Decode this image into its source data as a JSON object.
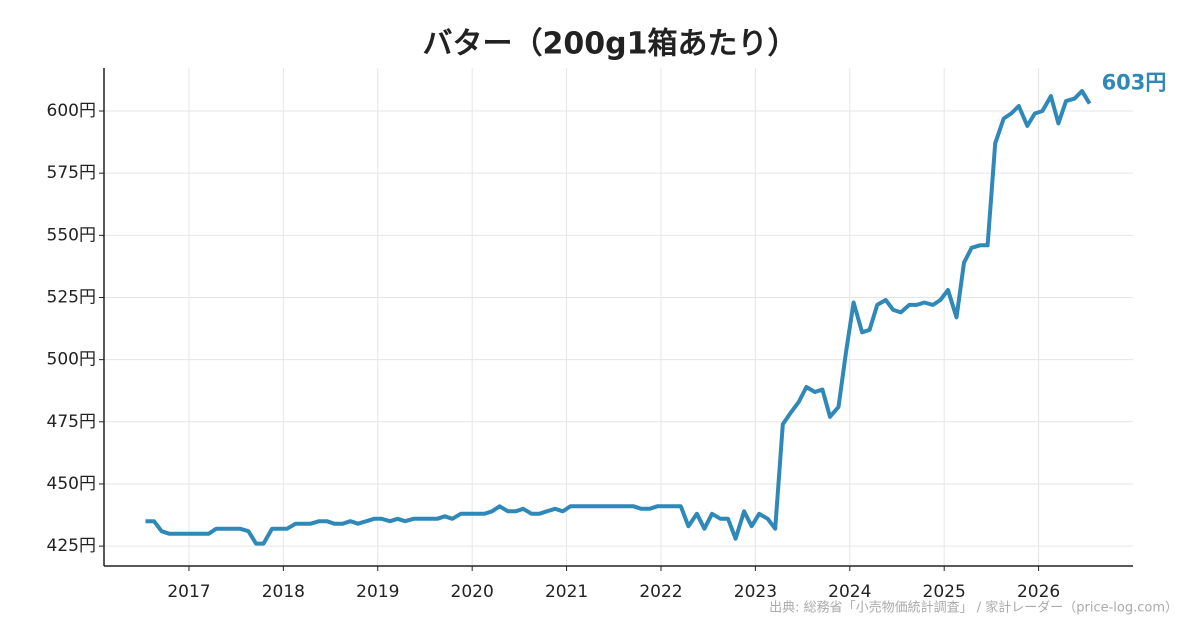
{
  "chart_data": {
    "type": "line",
    "title": "バター（200g1箱あたり）",
    "source": "出典: 総務省「小売物価統計調査」 / 家計レーダー（price-log.com）",
    "xlim": [
      2016.1,
      2027.0
    ],
    "ylim": [
      417,
      617.3
    ],
    "xticks": [
      2017,
      2018,
      2019,
      2020,
      2021,
      2022,
      2023,
      2024,
      2025,
      2026
    ],
    "yticks": [
      {
        "value": 425,
        "label": "425円"
      },
      {
        "value": 450,
        "label": "450円"
      },
      {
        "value": 475,
        "label": "475円"
      },
      {
        "value": 500,
        "label": "500円"
      },
      {
        "value": 525,
        "label": "525円"
      },
      {
        "value": 550,
        "label": "550円"
      },
      {
        "value": 575,
        "label": "575円"
      },
      {
        "value": 600,
        "label": "600円"
      }
    ],
    "grid": true,
    "x": [
      2016.54,
      2016.63,
      2016.71,
      2016.79,
      2016.88,
      2016.96,
      2017.04,
      2017.13,
      2017.21,
      2017.29,
      2017.38,
      2017.46,
      2017.54,
      2017.63,
      2017.71,
      2017.79,
      2017.88,
      2017.96,
      2018.04,
      2018.13,
      2018.21,
      2018.29,
      2018.38,
      2018.46,
      2018.54,
      2018.63,
      2018.71,
      2018.79,
      2018.88,
      2018.96,
      2019.04,
      2019.13,
      2019.21,
      2019.29,
      2019.38,
      2019.46,
      2019.54,
      2019.63,
      2019.71,
      2019.79,
      2019.88,
      2019.96,
      2020.04,
      2020.13,
      2020.21,
      2020.29,
      2020.38,
      2020.46,
      2020.54,
      2020.63,
      2020.71,
      2020.79,
      2020.88,
      2020.96,
      2021.04,
      2021.13,
      2021.21,
      2021.29,
      2021.38,
      2021.46,
      2021.54,
      2021.63,
      2021.71,
      2021.79,
      2021.88,
      2021.96,
      2022.04,
      2022.13,
      2022.21,
      2022.29,
      2022.38,
      2022.46,
      2022.54,
      2022.63,
      2022.71,
      2022.79,
      2022.88,
      2022.96,
      2023.04,
      2023.13,
      2023.21,
      2023.29,
      2023.38,
      2023.46,
      2023.54,
      2023.63,
      2023.71,
      2023.79,
      2023.88,
      2023.96,
      2024.04,
      2024.13,
      2024.21,
      2024.29,
      2024.38,
      2024.46,
      2024.54,
      2024.63,
      2024.71,
      2024.79,
      2024.88,
      2024.96,
      2025.04,
      2025.13,
      2025.21,
      2025.29,
      2025.38,
      2025.46,
      2025.54,
      2025.63,
      2025.71,
      2025.79,
      2025.88,
      2025.96,
      2026.04,
      2026.13,
      2026.21,
      2026.29,
      2026.38,
      2026.46,
      2026.54
    ],
    "series": [
      {
        "color": "#2e88b8",
        "last_label": "603円",
        "values": [
          435,
          435,
          431,
          430,
          430,
          430,
          430,
          430,
          430,
          432,
          432,
          432,
          432,
          431,
          426,
          426,
          432,
          432,
          432,
          434,
          434,
          434,
          435,
          435,
          434,
          434,
          435,
          434,
          435,
          436,
          436,
          435,
          436,
          435,
          436,
          436,
          436,
          436,
          437,
          436,
          438,
          438,
          438,
          438,
          439,
          441,
          439,
          439,
          440,
          438,
          438,
          439,
          440,
          439,
          441,
          441,
          441,
          441,
          441,
          441,
          441,
          441,
          441,
          440,
          440,
          441,
          441,
          441,
          441,
          433,
          438,
          432,
          438,
          436,
          436,
          428,
          439,
          433,
          438,
          436,
          432,
          474,
          479,
          483,
          489,
          487,
          488,
          477,
          481,
          503,
          523,
          511,
          512,
          522,
          524,
          520,
          519,
          522,
          522,
          523,
          522,
          524,
          528,
          517,
          539,
          545,
          546,
          546,
          587,
          597,
          599,
          602,
          594,
          599,
          600,
          606,
          595,
          604,
          605,
          608,
          603
        ]
      }
    ]
  }
}
